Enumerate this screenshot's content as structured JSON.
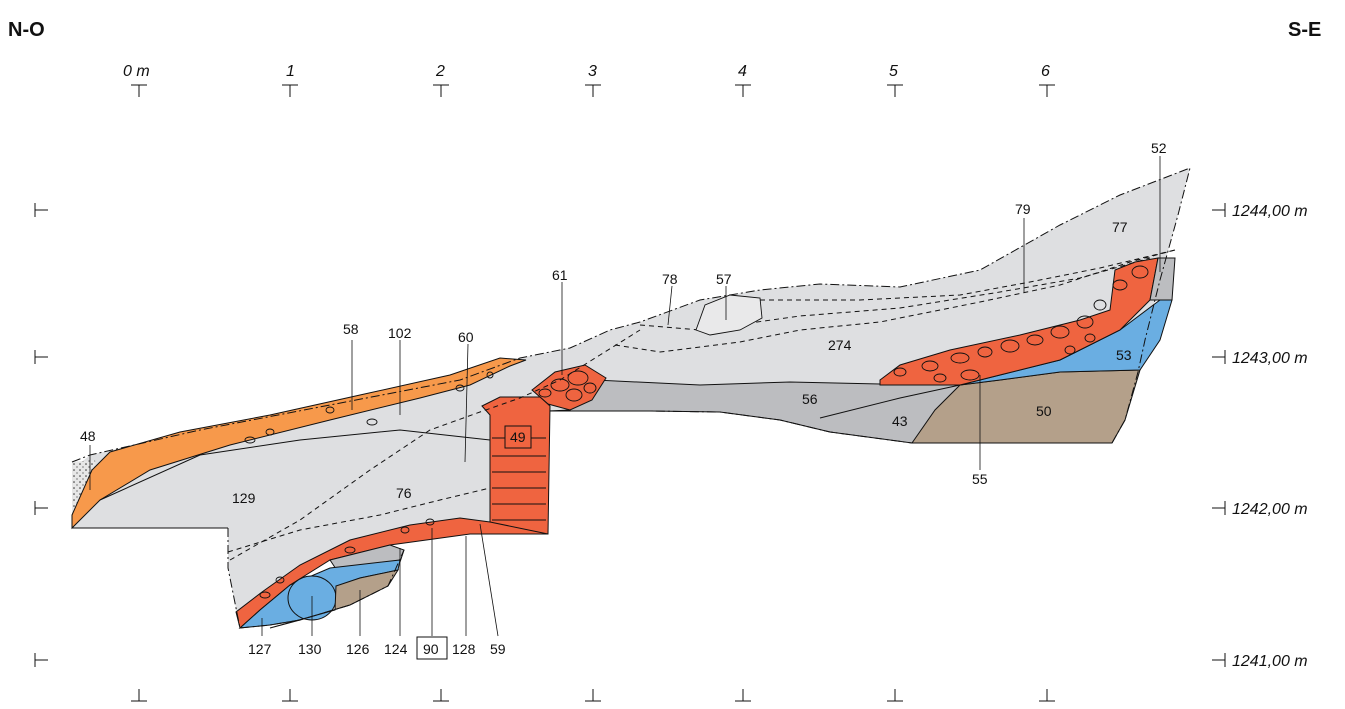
{
  "orientation": {
    "left": "N-O",
    "right": "S-E"
  },
  "x_axis": {
    "labels": [
      "0 m",
      "1",
      "2",
      "3",
      "4",
      "5",
      "6"
    ]
  },
  "y_axis": {
    "labels": [
      "1244,00 m",
      "1243,00 m",
      "1242,00 m",
      "1241,00 m"
    ]
  },
  "colors": {
    "grey_fill": "#dedfe1",
    "dark_grey_fill": "#bcbdc0",
    "orange_fill": "#f7994b",
    "red_fill": "#ef6440",
    "blue_fill": "#6aaee2",
    "brown_fill": "#b4a08a",
    "dotted_fill": "#e7e7e7"
  },
  "unit_labels": {
    "u48": "48",
    "u129": "129",
    "u76": "76",
    "u58": "58",
    "u102": "102",
    "u60": "60",
    "u61": "61",
    "u78": "78",
    "u57": "57",
    "u274": "274",
    "u79": "79",
    "u77": "77",
    "u52": "52",
    "u53": "53",
    "u56": "56",
    "u43": "43",
    "u50": "50",
    "u55": "55",
    "u49": "49",
    "u59": "59",
    "u128": "128",
    "u90": "90",
    "u124": "124",
    "u126": "126",
    "u130": "130",
    "u127": "127"
  }
}
